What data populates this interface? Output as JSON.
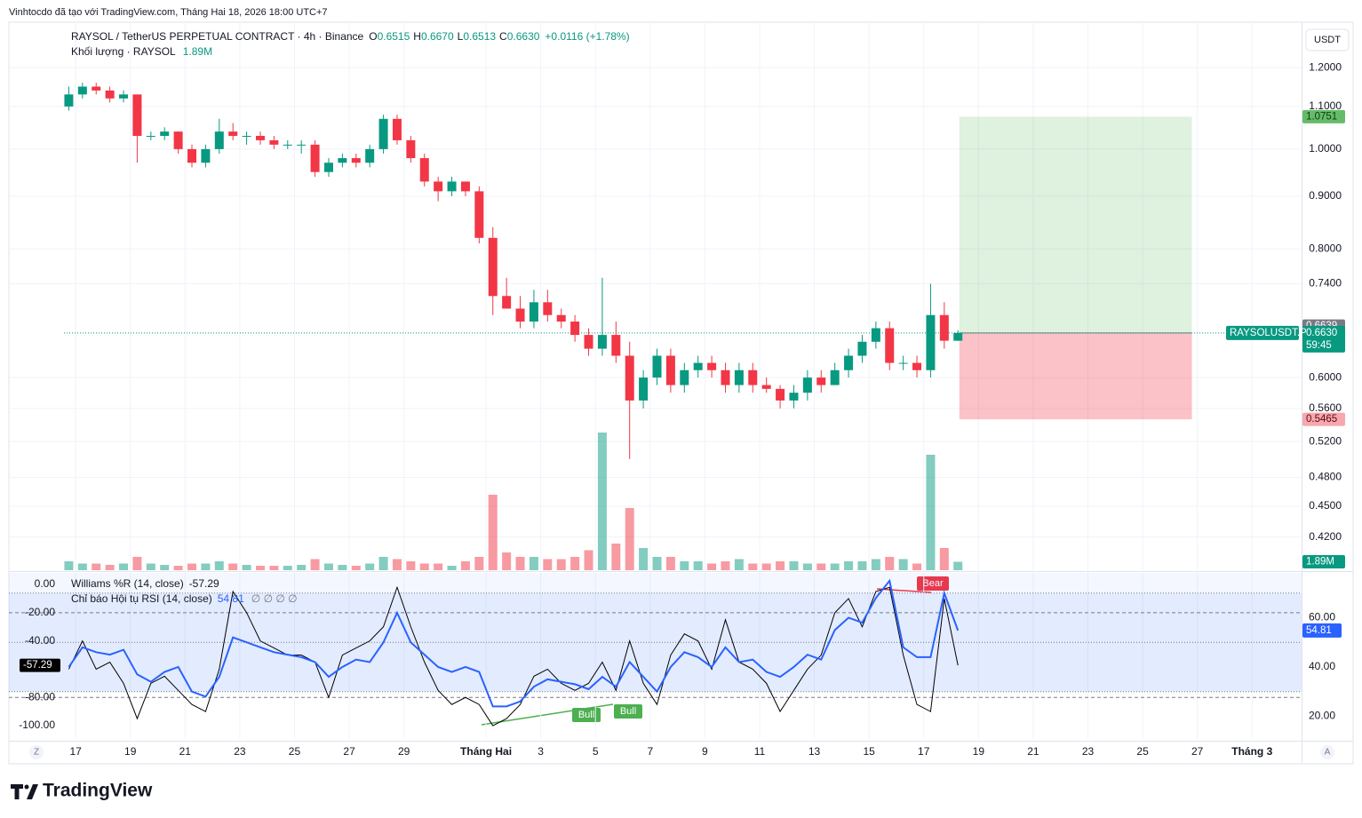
{
  "header": {
    "credit": "Vinhtocdo đã tạo với TradingView.com, Tháng Hai 18, 2026 18:00 UTC+7",
    "brand": "TradingView",
    "axis_buttons": [
      "Z",
      "A"
    ]
  },
  "chart_data": {
    "type": "candlestick",
    "symbol": "RAYSOL / TetherUS PERPETUAL CONTRACT · 4h · Binance",
    "ohlc_keys": [
      "O",
      "H",
      "L",
      "C"
    ],
    "ohlc_labels": [
      "0.6515",
      "0.6670",
      "0.6513",
      "0.6630"
    ],
    "change": "+0.0116 (+1.78%)",
    "volume_title": "Khối lượng · RAYSOL",
    "currency": "USDT",
    "up_color": "#089981",
    "down_color": "#f23645",
    "log_scale": true,
    "grid": true,
    "xlim": [
      -2.44,
      44.81
    ],
    "ylim": [
      0.39,
      1.315
    ],
    "xticks": [
      {
        "value": 0,
        "label": "17"
      },
      {
        "value": 2,
        "label": "19"
      },
      {
        "value": 4,
        "label": "21"
      },
      {
        "value": 6,
        "label": "23"
      },
      {
        "value": 8,
        "label": "25"
      },
      {
        "value": 10,
        "label": "27"
      },
      {
        "value": 12,
        "label": "29"
      },
      {
        "value": 15,
        "label": "Tháng Hai"
      },
      {
        "value": 17,
        "label": "3"
      },
      {
        "value": 19,
        "label": "5"
      },
      {
        "value": 21,
        "label": "7"
      },
      {
        "value": 23,
        "label": "9"
      },
      {
        "value": 25,
        "label": "11"
      },
      {
        "value": 27,
        "label": "13"
      },
      {
        "value": 29,
        "label": "15"
      },
      {
        "value": 31,
        "label": "17"
      },
      {
        "value": 33,
        "label": "19"
      },
      {
        "value": 35,
        "label": "21"
      },
      {
        "value": 37,
        "label": "23"
      },
      {
        "value": 39,
        "label": "25"
      },
      {
        "value": 41,
        "label": "27"
      },
      {
        "value": 43,
        "label": "Tháng 3"
      }
    ],
    "yticks": [
      {
        "value": 1.2,
        "label": "1.2000"
      },
      {
        "value": 1.1,
        "label": "1.1000"
      },
      {
        "value": 1.0,
        "label": "1.0000"
      },
      {
        "value": 0.9,
        "label": "0.9000"
      },
      {
        "value": 0.8,
        "label": "0.8000"
      },
      {
        "value": 0.74,
        "label": "0.7400"
      },
      {
        "value": 0.6,
        "label": "0.6000"
      },
      {
        "value": 0.56,
        "label": "0.5600"
      },
      {
        "value": 0.52,
        "label": "0.5200"
      },
      {
        "value": 0.48,
        "label": "0.4800"
      },
      {
        "value": 0.45,
        "label": "0.4500"
      },
      {
        "value": 0.42,
        "label": "0.4200"
      }
    ],
    "x": [
      -0.25,
      0.25,
      0.75,
      1.25,
      1.75,
      2.25,
      2.75,
      3.25,
      3.75,
      4.25,
      4.75,
      5.25,
      5.75,
      6.25,
      6.75,
      7.25,
      7.75,
      8.25,
      8.75,
      9.25,
      9.75,
      10.25,
      10.75,
      11.25,
      11.75,
      12.25,
      12.75,
      13.25,
      13.75,
      14.25,
      14.75,
      15.25,
      15.75,
      16.25,
      16.75,
      17.25,
      17.75,
      18.25,
      18.75,
      19.25,
      19.75,
      20.25,
      20.75,
      21.25,
      21.75,
      22.25,
      22.75,
      23.25,
      23.75,
      24.25,
      24.75,
      25.25,
      25.75,
      26.25,
      26.75,
      27.25,
      27.75,
      28.25,
      28.75,
      29.25,
      29.75,
      30.25,
      30.75,
      31.25,
      31.75,
      32.25
    ],
    "open": [
      1.1,
      1.13,
      1.15,
      1.14,
      1.12,
      1.13,
      1.03,
      1.03,
      1.04,
      1.0,
      0.97,
      1.0,
      1.04,
      1.03,
      1.03,
      1.02,
      1.01,
      1.01,
      1.01,
      0.95,
      0.97,
      0.98,
      0.97,
      1.0,
      1.07,
      1.02,
      0.98,
      0.93,
      0.91,
      0.93,
      0.91,
      0.82,
      0.72,
      0.7,
      0.68,
      0.71,
      0.69,
      0.68,
      0.66,
      0.64,
      0.66,
      0.63,
      0.57,
      0.6,
      0.63,
      0.59,
      0.61,
      0.62,
      0.61,
      0.59,
      0.61,
      0.59,
      0.585,
      0.57,
      0.58,
      0.6,
      0.59,
      0.61,
      0.63,
      0.65,
      0.67,
      0.62,
      0.62,
      0.61,
      0.69,
      0.6515
    ],
    "high": [
      1.15,
      1.16,
      1.16,
      1.15,
      1.14,
      1.13,
      1.04,
      1.05,
      1.04,
      1.01,
      1.01,
      1.07,
      1.06,
      1.04,
      1.04,
      1.03,
      1.02,
      1.02,
      1.02,
      0.98,
      0.99,
      0.99,
      1.01,
      1.08,
      1.08,
      1.03,
      0.99,
      0.94,
      0.94,
      0.93,
      0.92,
      0.84,
      0.75,
      0.72,
      0.73,
      0.73,
      0.7,
      0.69,
      0.67,
      0.75,
      0.68,
      0.65,
      0.61,
      0.64,
      0.64,
      0.62,
      0.63,
      0.63,
      0.62,
      0.62,
      0.62,
      0.6,
      0.59,
      0.59,
      0.61,
      0.61,
      0.62,
      0.64,
      0.66,
      0.68,
      0.68,
      0.63,
      0.63,
      0.74,
      0.71,
      0.667
    ],
    "low": [
      1.09,
      1.12,
      1.13,
      1.11,
      1.11,
      0.97,
      1.02,
      1.02,
      0.99,
      0.96,
      0.96,
      0.99,
      1.02,
      1.01,
      1.01,
      1.0,
      1.0,
      0.99,
      0.94,
      0.94,
      0.96,
      0.96,
      0.96,
      0.99,
      1.01,
      0.97,
      0.92,
      0.89,
      0.9,
      0.9,
      0.81,
      0.69,
      0.7,
      0.67,
      0.67,
      0.68,
      0.67,
      0.65,
      0.63,
      0.63,
      0.62,
      0.5,
      0.56,
      0.59,
      0.58,
      0.58,
      0.6,
      0.6,
      0.58,
      0.58,
      0.58,
      0.58,
      0.56,
      0.56,
      0.57,
      0.58,
      0.59,
      0.6,
      0.62,
      0.64,
      0.61,
      0.61,
      0.6,
      0.6,
      0.64,
      0.6513
    ],
    "close": [
      1.13,
      1.15,
      1.14,
      1.12,
      1.13,
      1.03,
      1.03,
      1.04,
      1.0,
      0.97,
      1.0,
      1.04,
      1.03,
      1.03,
      1.02,
      1.01,
      1.01,
      1.01,
      0.95,
      0.97,
      0.98,
      0.97,
      1.0,
      1.07,
      1.02,
      0.98,
      0.93,
      0.91,
      0.93,
      0.91,
      0.82,
      0.72,
      0.7,
      0.68,
      0.71,
      0.69,
      0.68,
      0.66,
      0.64,
      0.66,
      0.63,
      0.57,
      0.6,
      0.63,
      0.59,
      0.61,
      0.62,
      0.61,
      0.59,
      0.61,
      0.59,
      0.585,
      0.57,
      0.58,
      0.6,
      0.59,
      0.61,
      0.63,
      0.65,
      0.67,
      0.62,
      0.62,
      0.61,
      0.69,
      0.6515,
      0.663
    ],
    "last_price": {
      "value": 0.663,
      "label": "0.6630",
      "symbol": "RAYSOLUSDT.P",
      "countdown": "59:45"
    },
    "marker_price": 0.6639,
    "position": {
      "entry": 0.663,
      "target": 1.0751,
      "stop": 0.5465,
      "x_from": 32.3,
      "x_to": 40.8
    },
    "volume": {
      "values": [
        2,
        1.5,
        1.5,
        1.2,
        1.5,
        3,
        1.5,
        1.2,
        1,
        1.5,
        1.5,
        2,
        1.5,
        1.2,
        1,
        1,
        1,
        1.2,
        2.5,
        1.5,
        1.2,
        1,
        1.5,
        3,
        2.5,
        2,
        1.5,
        1.5,
        1,
        2,
        3,
        17,
        4,
        3,
        3,
        2.5,
        2.5,
        3,
        4.5,
        31,
        6,
        14,
        5,
        3,
        3,
        2,
        2,
        1.5,
        2,
        2.5,
        1.5,
        1.5,
        2,
        2,
        1.5,
        1.5,
        1.5,
        2,
        2,
        2.5,
        3,
        2.5,
        1.5,
        26,
        5,
        1.89
      ],
      "vlim": [
        0,
        40
      ],
      "last_label": "1.89M"
    },
    "williams": {
      "title": "Williams %R (14, close)",
      "color": "#000000",
      "values": [
        -60,
        -40,
        -60,
        -55,
        -70,
        -95,
        -70,
        -65,
        -75,
        -85,
        -90,
        -60,
        -5,
        -20,
        -40,
        -45,
        -50,
        -50,
        -55,
        -80,
        -50,
        -45,
        -40,
        -30,
        -2,
        -30,
        -55,
        -75,
        -85,
        -80,
        -85,
        -100,
        -95,
        -85,
        -65,
        -60,
        -70,
        -75,
        -70,
        -55,
        -75,
        -40,
        -70,
        -85,
        -50,
        -35,
        -40,
        -60,
        -25,
        -55,
        -60,
        -70,
        -90,
        -75,
        -60,
        -50,
        -20,
        -10,
        -30,
        -5,
        -2,
        -50,
        -85,
        -90,
        -10,
        -57.29
      ],
      "ylim": [
        -109.4,
        8.2
      ],
      "yticks": [
        {
          "value": 0,
          "label": "0.00"
        },
        {
          "value": -20,
          "label": "-20.00"
        },
        {
          "value": -40,
          "label": "-40.00"
        },
        {
          "value": -80,
          "label": "-80.00"
        },
        {
          "value": -100,
          "label": "-100.00"
        }
      ],
      "levels": [
        -20,
        -80
      ]
    },
    "rsi": {
      "title": "Chỉ báo Hội tụ RSI (14, close)",
      "extra": "∅ ∅ ∅ ∅",
      "color": "#2962ff",
      "values": [
        40,
        48,
        46,
        45,
        47,
        37,
        34,
        38,
        40,
        30,
        28,
        36,
        52,
        50,
        48,
        46,
        45,
        44,
        42,
        36,
        40,
        43,
        42,
        50,
        62,
        50,
        45,
        40,
        38,
        40,
        38,
        24,
        24,
        26,
        32,
        35,
        34,
        33,
        31,
        36,
        32,
        42,
        36,
        30,
        40,
        46,
        44,
        40,
        48,
        42,
        43,
        38,
        36,
        40,
        45,
        43,
        55,
        60,
        58,
        68,
        75,
        48,
        44,
        44,
        70,
        54.81
      ],
      "ylim": [
        10.8,
        78.2
      ],
      "yticks": [
        {
          "value": 60,
          "label": "60.00"
        },
        {
          "value": 40,
          "label": "40.00"
        },
        {
          "value": 20,
          "label": "20.00"
        }
      ],
      "band": [
        30,
        70
      ],
      "mid": 50
    },
    "divergences": [
      "Bull",
      "Bull",
      "Bear"
    ]
  }
}
